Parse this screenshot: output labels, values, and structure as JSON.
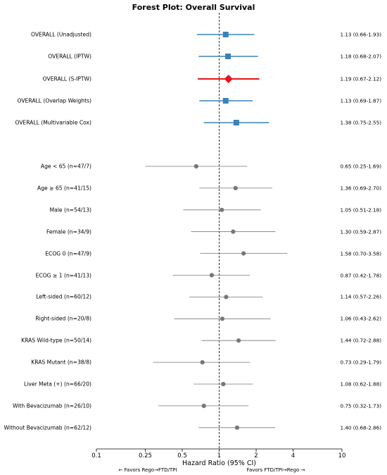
{
  "chart_data": {
    "type": "forest",
    "title": "Forest Plot: Overall Survival",
    "xlabel": "Hazard Ratio (95% CI)",
    "xscale": "log",
    "xlim": [
      0.1,
      10
    ],
    "xticks": [
      0.1,
      0.25,
      0.5,
      1,
      2,
      4,
      10
    ],
    "xtick_labels": [
      "0.1",
      "0.25",
      "0.5",
      "1",
      "2",
      "4",
      "10"
    ],
    "reference_line": 1,
    "favors_left": "← Favors Rego→FTD/TPI",
    "favors_right": "Favors FTD/TPI→Rego →",
    "rows": [
      {
        "label": "OVERALL (Unadjusted)",
        "hr": 1.13,
        "lo": 0.66,
        "hi": 1.93,
        "ci_text": "1.13 (0.66-1.93)",
        "group": "overall",
        "marker": "square",
        "color": "#3a82b8"
      },
      {
        "label": "OVERALL (IPTW)",
        "hr": 1.18,
        "lo": 0.68,
        "hi": 2.07,
        "ci_text": "1.18 (0.68-2.07)",
        "group": "overall",
        "marker": "square",
        "color": "#3a82b8"
      },
      {
        "label": "OVERALL (S-IPTW)",
        "hr": 1.19,
        "lo": 0.67,
        "hi": 2.12,
        "ci_text": "1.19 (0.67-2.12)",
        "group": "overall",
        "marker": "diamond",
        "color": "#e8141a"
      },
      {
        "label": "OVERALL (Overlap Weights)",
        "hr": 1.13,
        "lo": 0.69,
        "hi": 1.87,
        "ci_text": "1.13 (0.69-1.87)",
        "group": "overall",
        "marker": "square",
        "color": "#3a82b8"
      },
      {
        "label": "OVERALL (Multivariable Cox)",
        "hr": 1.38,
        "lo": 0.75,
        "hi": 2.55,
        "ci_text": "1.38 (0.75-2.55)",
        "group": "overall",
        "marker": "square",
        "color": "#3a82b8"
      },
      {
        "label": "Age < 65 (n=47/7)",
        "hr": 0.65,
        "lo": 0.25,
        "hi": 1.69,
        "ci_text": "0.65 (0.25-1.69)",
        "group": "subgroup",
        "marker": "circle",
        "color": "#777777"
      },
      {
        "label": "Age ≥ 65 (n=41/15)",
        "hr": 1.36,
        "lo": 0.69,
        "hi": 2.7,
        "ci_text": "1.36 (0.69-2.70)",
        "group": "subgroup",
        "marker": "circle",
        "color": "#777777"
      },
      {
        "label": "Male (n=54/13)",
        "hr": 1.05,
        "lo": 0.51,
        "hi": 2.18,
        "ci_text": "1.05 (0.51-2.18)",
        "group": "subgroup",
        "marker": "circle",
        "color": "#777777"
      },
      {
        "label": "Female (n=34/9)",
        "hr": 1.3,
        "lo": 0.59,
        "hi": 2.87,
        "ci_text": "1.30 (0.59-2.87)",
        "group": "subgroup",
        "marker": "circle",
        "color": "#777777"
      },
      {
        "label": "ECOG 0 (n=47/9)",
        "hr": 1.58,
        "lo": 0.7,
        "hi": 3.58,
        "ci_text": "1.58 (0.70-3.58)",
        "group": "subgroup",
        "marker": "circle",
        "color": "#777777"
      },
      {
        "label": "ECOG ≥ 1 (n=41/13)",
        "hr": 0.87,
        "lo": 0.42,
        "hi": 1.78,
        "ci_text": "0.87 (0.42-1.78)",
        "group": "subgroup",
        "marker": "circle",
        "color": "#777777"
      },
      {
        "label": "Left-sided (n=60/12)",
        "hr": 1.14,
        "lo": 0.57,
        "hi": 2.26,
        "ci_text": "1.14 (0.57-2.26)",
        "group": "subgroup",
        "marker": "circle",
        "color": "#777777"
      },
      {
        "label": "Right-sided (n=20/8)",
        "hr": 1.06,
        "lo": 0.43,
        "hi": 2.62,
        "ci_text": "1.06 (0.43-2.62)",
        "group": "subgroup",
        "marker": "circle",
        "color": "#777777"
      },
      {
        "label": "KRAS Wild-type (n=50/14)",
        "hr": 1.44,
        "lo": 0.72,
        "hi": 2.88,
        "ci_text": "1.44 (0.72-2.88)",
        "group": "subgroup",
        "marker": "circle",
        "color": "#777777"
      },
      {
        "label": "KRAS Mutant (n=38/8)",
        "hr": 0.73,
        "lo": 0.29,
        "hi": 1.79,
        "ci_text": "0.73 (0.29-1.79)",
        "group": "subgroup",
        "marker": "circle",
        "color": "#777777"
      },
      {
        "label": "Liver Meta (+) (n=66/20)",
        "hr": 1.08,
        "lo": 0.62,
        "hi": 1.88,
        "ci_text": "1.08 (0.62-1.88)",
        "group": "subgroup",
        "marker": "circle",
        "color": "#777777"
      },
      {
        "label": "With Bevacizumab (n=26/10)",
        "hr": 0.75,
        "lo": 0.32,
        "hi": 1.73,
        "ci_text": "0.75 (0.32-1.73)",
        "group": "subgroup",
        "marker": "circle",
        "color": "#777777"
      },
      {
        "label": "Without Bevacizumab (n=62/12)",
        "hr": 1.4,
        "lo": 0.68,
        "hi": 2.86,
        "ci_text": "1.40 (0.68-2.86)",
        "group": "subgroup",
        "marker": "circle",
        "color": "#777777"
      }
    ]
  }
}
